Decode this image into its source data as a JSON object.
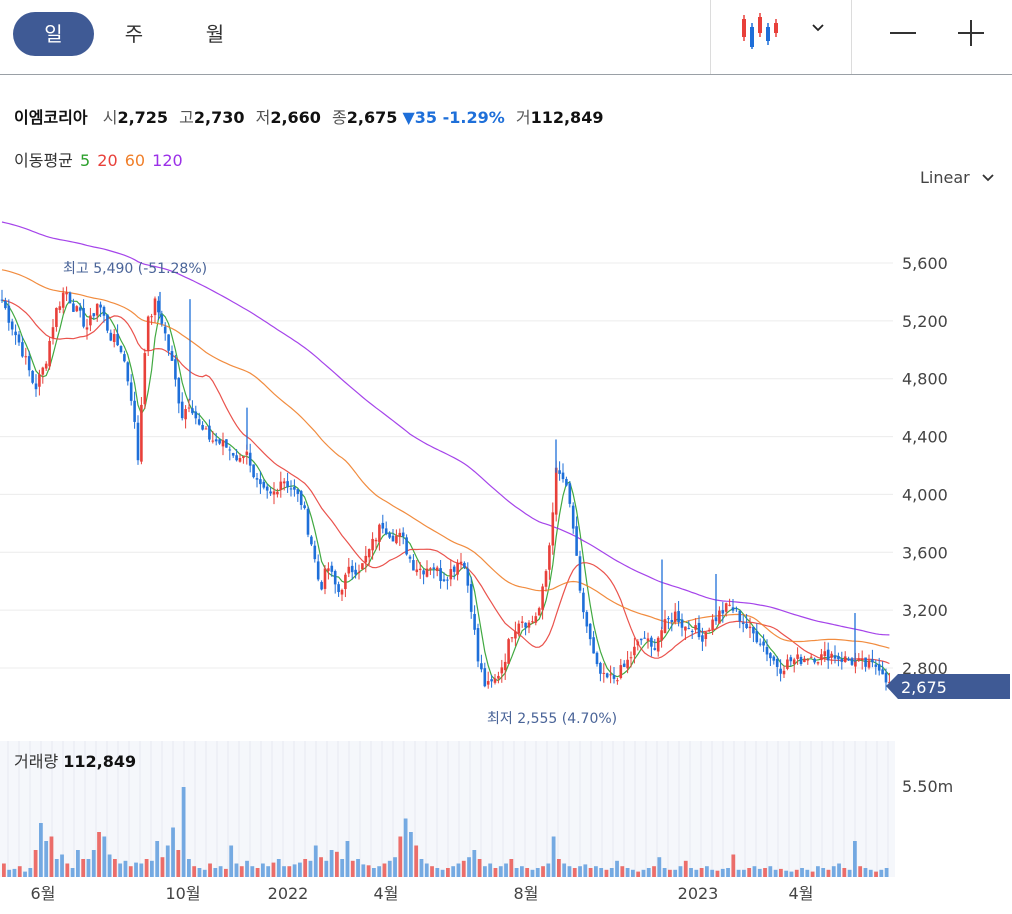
{
  "toolbar": {
    "periods": [
      "일",
      "주",
      "월"
    ],
    "active_period": "일",
    "chart_type_icon": "candlestick-icon",
    "zoom_out_icon": "minus-icon",
    "zoom_in_icon": "plus-icon"
  },
  "stock": {
    "name": "이엠코리아",
    "open_label": "시",
    "open": "2,725",
    "high_label": "고",
    "high": "2,730",
    "low_label": "저",
    "low": "2,660",
    "close_label": "종",
    "close": "2,675",
    "change": "▼35 -1.29%",
    "volume_label": "거",
    "volume": "112,849"
  },
  "moving_average": {
    "label": "이동평균",
    "periods": [
      "5",
      "20",
      "60",
      "120"
    ],
    "colors": [
      "#2ca02c",
      "#e8403a",
      "#f07f2a",
      "#9b30e8"
    ]
  },
  "scale_mode": "Linear",
  "chart_data": {
    "type": "candlestick",
    "y_ticks": [
      "5,600",
      "5,200",
      "4,800",
      "4,400",
      "4,000",
      "3,600",
      "3,200",
      "2,800"
    ],
    "ylim": [
      2500,
      5800
    ],
    "x_ticks": [
      "6월",
      "10월",
      "2022",
      "4월",
      "8월",
      "2023",
      "4월"
    ],
    "current_price": "2,675",
    "max_marker": "최고 5,490 (-51.28%)",
    "min_marker": "최저 2,555 (4.70%)",
    "close_path": [
      [
        0,
        5380
      ],
      [
        10,
        5200
      ],
      [
        22,
        5000
      ],
      [
        35,
        4730
      ],
      [
        45,
        4900
      ],
      [
        55,
        5250
      ],
      [
        65,
        5420
      ],
      [
        75,
        5280
      ],
      [
        88,
        5150
      ],
      [
        98,
        5340
      ],
      [
        110,
        5100
      ],
      [
        122,
        5000
      ],
      [
        132,
        4650
      ],
      [
        138,
        4250
      ],
      [
        146,
        5150
      ],
      [
        155,
        5320
      ],
      [
        162,
        5200
      ],
      [
        172,
        4900
      ],
      [
        182,
        4550
      ],
      [
        190,
        4650
      ],
      [
        200,
        4450
      ],
      [
        212,
        4380
      ],
      [
        222,
        4350
      ],
      [
        232,
        4300
      ],
      [
        240,
        4230
      ],
      [
        246,
        4350
      ],
      [
        252,
        4100
      ],
      [
        262,
        4020
      ],
      [
        272,
        3990
      ],
      [
        282,
        4120
      ],
      [
        292,
        4040
      ],
      [
        302,
        3940
      ],
      [
        312,
        3650
      ],
      [
        320,
        3350
      ],
      [
        328,
        3500
      ],
      [
        338,
        3320
      ],
      [
        350,
        3480
      ],
      [
        362,
        3500
      ],
      [
        372,
        3650
      ],
      [
        382,
        3800
      ],
      [
        392,
        3720
      ],
      [
        402,
        3700
      ],
      [
        412,
        3520
      ],
      [
        422,
        3480
      ],
      [
        432,
        3520
      ],
      [
        442,
        3420
      ],
      [
        452,
        3480
      ],
      [
        462,
        3580
      ],
      [
        470,
        3300
      ],
      [
        478,
        2850
      ],
      [
        486,
        2660
      ],
      [
        494,
        2700
      ],
      [
        504,
        2850
      ],
      [
        512,
        3050
      ],
      [
        520,
        3150
      ],
      [
        530,
        3100
      ],
      [
        540,
        3220
      ],
      [
        548,
        3550
      ],
      [
        556,
        4150
      ],
      [
        564,
        4100
      ],
      [
        572,
        3850
      ],
      [
        580,
        3300
      ],
      [
        588,
        3050
      ],
      [
        596,
        2800
      ],
      [
        604,
        2720
      ],
      [
        614,
        2730
      ],
      [
        624,
        2800
      ],
      [
        634,
        2920
      ],
      [
        644,
        3020
      ],
      [
        652,
        2920
      ],
      [
        660,
        3050
      ],
      [
        668,
        3120
      ],
      [
        676,
        3180
      ],
      [
        684,
        3080
      ],
      [
        692,
        3100
      ],
      [
        700,
        3000
      ],
      [
        710,
        3100
      ],
      [
        720,
        3180
      ],
      [
        730,
        3230
      ],
      [
        740,
        3150
      ],
      [
        750,
        3050
      ],
      [
        760,
        3000
      ],
      [
        770,
        2880
      ],
      [
        780,
        2800
      ],
      [
        790,
        2850
      ],
      [
        800,
        2860
      ],
      [
        810,
        2890
      ],
      [
        820,
        2870
      ],
      [
        830,
        2900
      ],
      [
        840,
        2870
      ],
      [
        850,
        2850
      ],
      [
        860,
        2830
      ],
      [
        870,
        2810
      ],
      [
        880,
        2820
      ],
      [
        890,
        2675
      ]
    ],
    "volumes": [
      0.15,
      0.08,
      0.09,
      0.12,
      0.06,
      0.1,
      0.3,
      0.6,
      0.4,
      0.45,
      0.2,
      0.25,
      0.15,
      0.1,
      0.3,
      0.2,
      0.2,
      0.3,
      0.5,
      0.45,
      0.25,
      0.2,
      0.15,
      0.18,
      0.12,
      0.16,
      0.15,
      0.2,
      0.18,
      0.4,
      0.22,
      0.35,
      0.55,
      0.3,
      1.0,
      0.2,
      0.12,
      0.1,
      0.08,
      0.15,
      0.1,
      0.12,
      0.09,
      0.35,
      0.15,
      0.12,
      0.18,
      0.12,
      0.1,
      0.15,
      0.12,
      0.16,
      0.2,
      0.12,
      0.12,
      0.14,
      0.16,
      0.2,
      0.18,
      0.35,
      0.22,
      0.18,
      0.3,
      0.28,
      0.2,
      0.4,
      0.18,
      0.2,
      0.14,
      0.13,
      0.1,
      0.12,
      0.15,
      0.18,
      0.22,
      0.45,
      0.65,
      0.5,
      0.35,
      0.2,
      0.15,
      0.12,
      0.1,
      0.08,
      0.1,
      0.12,
      0.15,
      0.18,
      0.22,
      0.3,
      0.2,
      0.12,
      0.15,
      0.1,
      0.12,
      0.15,
      0.2,
      0.1,
      0.12,
      0.1,
      0.08,
      0.1,
      0.12,
      0.15,
      0.45,
      0.2,
      0.15,
      0.12,
      0.1,
      0.12,
      0.14,
      0.1,
      0.12,
      0.1,
      0.08,
      0.1,
      0.18,
      0.12,
      0.1,
      0.08,
      0.06,
      0.08,
      0.1,
      0.12,
      0.22,
      0.1,
      0.08,
      0.08,
      0.12,
      0.18,
      0.1,
      0.08,
      0.1,
      0.12,
      0.08,
      0.07,
      0.09,
      0.1,
      0.25,
      0.08,
      0.08,
      0.1,
      0.12,
      0.09,
      0.1,
      0.12,
      0.08,
      0.09,
      0.07,
      0.06,
      0.08,
      0.1,
      0.08,
      0.06,
      0.12,
      0.1,
      0.08,
      0.12,
      0.15,
      0.1,
      0.08,
      0.4,
      0.12,
      0.1,
      0.08,
      0.06,
      0.08,
      0.1
    ],
    "volume_label": "거래량",
    "volume_value": "112,849",
    "volume_tick": "5.50m"
  }
}
